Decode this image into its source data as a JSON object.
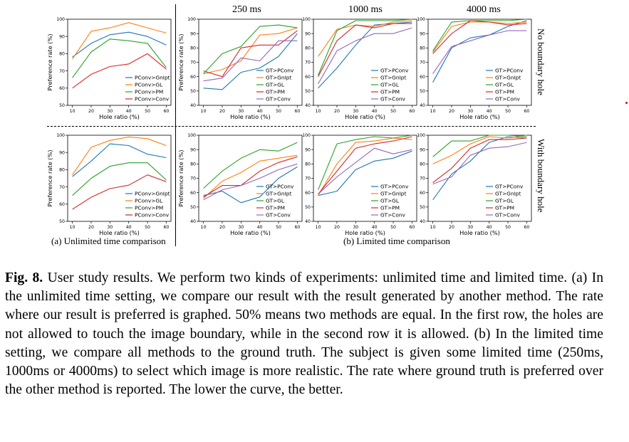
{
  "figure": {
    "column_titles": [
      "250 ms",
      "1000 ms",
      "4000 ms"
    ],
    "row_labels": [
      "No boundary hole",
      "With boundary hole"
    ],
    "subcaptions": [
      "(a) Unlimited time comparison",
      "(b) Limited time comparison"
    ],
    "colors": [
      "#1f77b4",
      "#ff7f0e",
      "#2ca02c",
      "#d62728",
      "#9467bd"
    ]
  },
  "caption": {
    "label": "Fig. 8.",
    "text": "User study results. We perform two kinds of experiments: unlimited time and limited time. (a) In the unlimited time setting, we compare our result with the result generated by another method. The rate where our result is preferred is graphed. 50% means two methods are equal. In the first row, the holes are not allowed to touch the image boundary, while in the second row it is allowed. (b) In the limited time setting, we compare all methods to the ground truth. The subject is given some limited time (250ms, 1000ms or 4000ms) to select which image is more realistic. The rate where ground truth is preferred over the other method is reported. The lower the curve, the better."
  },
  "chart_data": [
    {
      "type": "line",
      "panel": "unlimited-no-boundary",
      "x": [
        10,
        20,
        30,
        40,
        50,
        60
      ],
      "xlabel": "Hole ratio (%)",
      "ylabel": "Preference rate (%)",
      "ylim": [
        50,
        100
      ],
      "yticks": [
        50,
        60,
        70,
        80,
        90,
        100
      ],
      "legend_position": "lower-right",
      "series": [
        {
          "name": "PConv>GnIpt",
          "values": [
            78,
            86,
            91,
            92.5,
            90,
            85
          ]
        },
        {
          "name": "PConv>GL",
          "values": [
            77,
            93,
            95,
            98,
            95,
            92
          ]
        },
        {
          "name": "PConv>PM",
          "values": [
            66,
            81,
            88.5,
            87.5,
            86,
            72
          ]
        },
        {
          "name": "PConv>Conv",
          "values": [
            60,
            68,
            72.5,
            74,
            80,
            71
          ]
        }
      ]
    },
    {
      "type": "line",
      "panel": "250ms-no-boundary",
      "x": [
        10,
        20,
        30,
        40,
        50,
        60
      ],
      "xlabel": "Hole ratio (%)",
      "ylabel": "Preference rate (%)",
      "ylim": [
        40,
        100
      ],
      "yticks": [
        40,
        50,
        60,
        70,
        80,
        90,
        100
      ],
      "legend_position": "lower-right",
      "series": [
        {
          "name": "GT>PConv",
          "values": [
            52,
            51,
            63,
            66,
            74,
            90
          ]
        },
        {
          "name": "GT>GnIpt",
          "values": [
            62,
            65,
            71,
            89,
            90,
            94
          ]
        },
        {
          "name": "GT>GL",
          "values": [
            62,
            76,
            81,
            95,
            96,
            94
          ]
        },
        {
          "name": "GT>PM",
          "values": [
            64,
            60,
            80,
            82,
            82,
            92
          ]
        },
        {
          "name": "GT>Conv",
          "values": [
            57,
            59,
            73,
            71,
            85,
            85
          ]
        }
      ]
    },
    {
      "type": "line",
      "panel": "1000ms-no-boundary",
      "x": [
        10,
        20,
        30,
        40,
        50,
        60
      ],
      "xlabel": "Hole ratio (%)",
      "ylim": [
        40,
        100
      ],
      "yticks": [
        40,
        50,
        60,
        70,
        80,
        90,
        100
      ],
      "legend_position": "lower-right",
      "series": [
        {
          "name": "GT>PConv",
          "values": [
            52,
            66,
            82,
            96,
            97,
            98
          ]
        },
        {
          "name": "GT>GnIpt",
          "values": [
            74,
            93,
            96,
            95,
            98,
            99
          ]
        },
        {
          "name": "GT>GL",
          "values": [
            61,
            92,
            99,
            99,
            99,
            100
          ]
        },
        {
          "name": "GT>PM",
          "values": [
            60,
            85,
            96,
            94,
            97,
            97
          ]
        },
        {
          "name": "GT>Conv",
          "values": [
            55,
            78,
            85,
            90,
            90,
            94
          ]
        }
      ]
    },
    {
      "type": "line",
      "panel": "4000ms-no-boundary",
      "x": [
        10,
        20,
        30,
        40,
        50,
        60
      ],
      "xlabel": "Hole ratio (%)",
      "ylim": [
        40,
        100
      ],
      "yticks": [
        40,
        50,
        60,
        70,
        80,
        90,
        100
      ],
      "legend_position": "lower-right",
      "series": [
        {
          "name": "GT>PConv",
          "values": [
            56,
            80,
            87,
            89,
            95,
            99
          ]
        },
        {
          "name": "GT>GnIpt",
          "values": [
            77,
            95,
            98,
            98,
            97,
            98
          ]
        },
        {
          "name": "GT>GL",
          "values": [
            78,
            98,
            99,
            99,
            99,
            100
          ]
        },
        {
          "name": "GT>PM",
          "values": [
            76,
            90,
            99,
            98,
            96,
            97
          ]
        },
        {
          "name": "GT>Conv",
          "values": [
            62,
            81,
            85,
            89,
            92,
            92
          ]
        }
      ]
    },
    {
      "type": "line",
      "panel": "unlimited-with-boundary",
      "x": [
        10,
        20,
        30,
        40,
        50,
        60
      ],
      "xlabel": "Hole ratio (%)",
      "ylabel": "Preference rate (%)",
      "ylim": [
        50,
        100
      ],
      "yticks": [
        50,
        60,
        70,
        80,
        90,
        100
      ],
      "legend_position": "lower-right",
      "series": [
        {
          "name": "PConv>GnIpt",
          "values": [
            76,
            85,
            95,
            94,
            89,
            87
          ]
        },
        {
          "name": "PConv>GL",
          "values": [
            77,
            93,
            97,
            99,
            98,
            94
          ]
        },
        {
          "name": "PConv>PM",
          "values": [
            65,
            75,
            82,
            84,
            84,
            74
          ]
        },
        {
          "name": "PConv>Conv",
          "values": [
            57,
            64,
            69,
            71,
            77,
            73
          ]
        }
      ]
    },
    {
      "type": "line",
      "panel": "250ms-with-boundary",
      "x": [
        10,
        20,
        30,
        40,
        50,
        60
      ],
      "xlabel": "Hole ratio (%)",
      "ylabel": "Preference rate (%)",
      "ylim": [
        40,
        100
      ],
      "yticks": [
        40,
        50,
        60,
        70,
        80,
        90,
        100
      ],
      "legend_position": "lower-right",
      "series": [
        {
          "name": "GT>PConv",
          "values": [
            58,
            61,
            53,
            57,
            70,
            78
          ]
        },
        {
          "name": "GT>GnIpt",
          "values": [
            56,
            68,
            74,
            82,
            84,
            86
          ]
        },
        {
          "name": "GT>GL",
          "values": [
            63,
            75,
            84,
            90,
            89,
            95
          ]
        },
        {
          "name": "GT>PM",
          "values": [
            57,
            65,
            65,
            75,
            81,
            85
          ]
        },
        {
          "name": "GT>Conv",
          "values": [
            55,
            62,
            65,
            70,
            76,
            80
          ]
        }
      ]
    },
    {
      "type": "line",
      "panel": "1000ms-with-boundary",
      "x": [
        10,
        20,
        30,
        40,
        50,
        60
      ],
      "xlabel": "Hole ratio (%)",
      "ylim": [
        40,
        100
      ],
      "yticks": [
        40,
        50,
        60,
        70,
        80,
        90,
        100
      ],
      "legend_position": "lower-right",
      "series": [
        {
          "name": "GT>PConv",
          "values": [
            58,
            61,
            76,
            82,
            84,
            89
          ]
        },
        {
          "name": "GT>GnIpt",
          "values": [
            58,
            80,
            95,
            96,
            98,
            97
          ]
        },
        {
          "name": "GT>GL",
          "values": [
            62,
            94,
            97,
            99,
            98,
            100
          ]
        },
        {
          "name": "GT>PM",
          "values": [
            59,
            75,
            91,
            94,
            96,
            99
          ]
        },
        {
          "name": "GT>Conv",
          "values": [
            59,
            71,
            81,
            91,
            87,
            90
          ]
        }
      ]
    },
    {
      "type": "line",
      "panel": "4000ms-with-boundary",
      "x": [
        10,
        20,
        30,
        40,
        50,
        60
      ],
      "xlabel": "Hole ratio (%)",
      "ylim": [
        40,
        100
      ],
      "yticks": [
        40,
        50,
        60,
        70,
        80,
        90,
        100
      ],
      "legend_position": "lower-right",
      "series": [
        {
          "name": "GT>PConv",
          "values": [
            55,
            73,
            82,
            95,
            99,
            98
          ]
        },
        {
          "name": "GT>GnIpt",
          "values": [
            80,
            86,
            94,
            99,
            98,
            100
          ]
        },
        {
          "name": "GT>GL",
          "values": [
            85,
            96,
            96,
            100,
            100,
            99
          ]
        },
        {
          "name": "GT>PM",
          "values": [
            67,
            77,
            91,
            97,
            97,
            98
          ]
        },
        {
          "name": "GT>Conv",
          "values": [
            66,
            71,
            86,
            91,
            92,
            95
          ]
        }
      ]
    }
  ]
}
